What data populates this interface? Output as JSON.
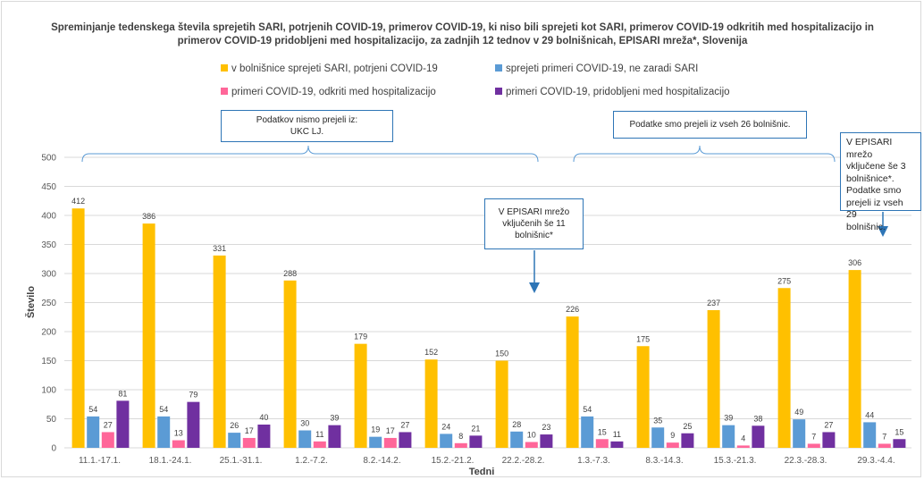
{
  "chart_data": {
    "type": "bar",
    "title": "Spreminjanje tedenskega števila sprejetih SARI, potrjenih COVID-19, primerov COVID-19, ki niso bili sprejeti kot SARI, primerov COVID-19 odkritih med hospitalizacijo in primerov COVID-19 pridobljeni med hospitalizacijo, za zadnjih 12 tednov v 29 bolnišnicah, EPISARI mreža*, Slovenija",
    "xlabel": "Tedni",
    "ylabel": "Število",
    "ylim": [
      0,
      500
    ],
    "yticks": [
      "0",
      "50",
      "100",
      "150",
      "200",
      "250",
      "300",
      "350",
      "400",
      "450",
      "500"
    ],
    "grid": true,
    "legend_placement": "top",
    "categories": [
      "11.1.-17.1.",
      "18.1.-24.1.",
      "25.1.-31.1.",
      "1.2.-7.2.",
      "8.2.-14.2.",
      "15.2.-21.2.",
      "22.2.-28.2.",
      "1.3.-7.3.",
      "8.3.-14.3.",
      "15.3.-21.3.",
      "22.3.-28.3.",
      "29.3.-4.4."
    ],
    "series": [
      {
        "name": "v bolnišnice sprejeti SARI, potrjeni COVID-19",
        "color": "#ffc000",
        "values": [
          412,
          386,
          331,
          288,
          179,
          152,
          150,
          226,
          175,
          237,
          275,
          306
        ]
      },
      {
        "name": "sprejeti primeri COVID-19, ne zaradi SARI",
        "color": "#5b9bd5",
        "values": [
          54,
          54,
          26,
          30,
          19,
          24,
          28,
          54,
          35,
          39,
          49,
          44
        ]
      },
      {
        "name": "primeri COVID-19, odkriti med hospitalizacijo",
        "color": "#ff6699",
        "values": [
          27,
          13,
          17,
          11,
          17,
          8,
          10,
          15,
          9,
          4,
          7,
          7
        ]
      },
      {
        "name": "primeri COVID-19, pridobljeni med hospitalizacijo",
        "color": "#7030a0",
        "values": [
          81,
          79,
          40,
          39,
          27,
          21,
          23,
          11,
          25,
          38,
          27,
          15
        ]
      }
    ],
    "annotations": [
      {
        "id": "left",
        "lines": [
          "Podatkov nismo prejeli iz:",
          "UKC LJ."
        ]
      },
      {
        "id": "right-top",
        "lines": [
          "Podatke smo prejeli iz vseh 26 bolnišnic."
        ]
      },
      {
        "id": "mid",
        "lines": [
          "V EPISARI mrežo",
          "vključenih še 11",
          "bolnišnic*"
        ]
      },
      {
        "id": "right-corner",
        "lines": [
          "V EPISARI mrežo",
          "vključene še 3",
          "bolnišnice*.",
          "Podatke smo",
          "prejeli iz vseh 29",
          "bolnišnic."
        ]
      }
    ]
  }
}
